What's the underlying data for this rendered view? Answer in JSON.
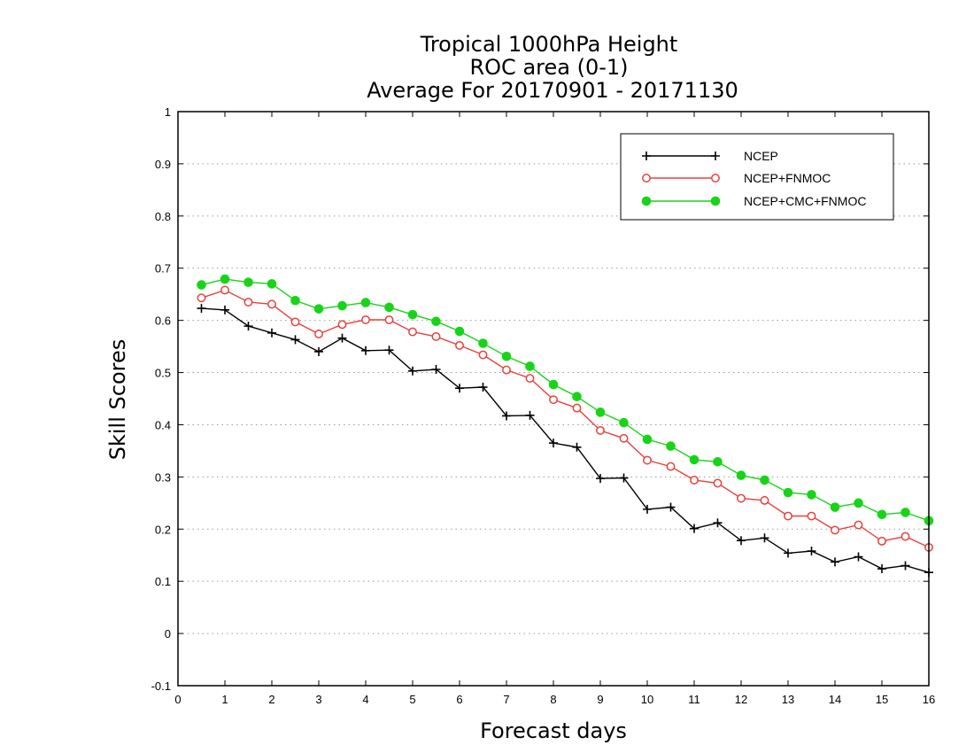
{
  "chart_data": {
    "type": "line",
    "title_lines": [
      "Tropical 1000hPa Height",
      "ROC area (0-1)",
      "Average For 20170901 - 20171130"
    ],
    "xlabel": "Forecast days",
    "ylabel": "Skill Scores",
    "xlim": [
      0,
      16
    ],
    "ylim": [
      -0.1,
      1
    ],
    "x_ticks": [
      "0",
      "1",
      "2",
      "3",
      "4",
      "5",
      "6",
      "7",
      "8",
      "9",
      "10",
      "11",
      "12",
      "13",
      "14",
      "15",
      "16"
    ],
    "y_ticks": [
      "-0.1",
      "0",
      "0.1",
      "0.2",
      "0.3",
      "0.4",
      "0.5",
      "0.6",
      "0.7",
      "0.8",
      "0.9",
      "1"
    ],
    "grid": "horizontal dotted",
    "legend_position": "top-right",
    "x": [
      0.5,
      1,
      1.5,
      2,
      2.5,
      3,
      3.5,
      4,
      4.5,
      5,
      5.5,
      6,
      6.5,
      7,
      7.5,
      8,
      8.5,
      9,
      9.5,
      10,
      10.5,
      11,
      11.5,
      12,
      12.5,
      13,
      13.5,
      14,
      14.5,
      15,
      15.5,
      16
    ],
    "series": [
      {
        "name": "NCEP",
        "color": "#000000",
        "marker": "plus",
        "values": [
          0.623,
          0.62,
          0.589,
          0.576,
          0.563,
          0.54,
          0.566,
          0.542,
          0.543,
          0.503,
          0.506,
          0.47,
          0.472,
          0.417,
          0.418,
          0.365,
          0.357,
          0.297,
          0.298,
          0.238,
          0.242,
          0.201,
          0.212,
          0.178,
          0.183,
          0.154,
          0.158,
          0.137,
          0.147,
          0.124,
          0.13,
          0.117
        ]
      },
      {
        "name": "NCEP+FNMOC",
        "color": "#e8413c",
        "marker": "open-circle",
        "values": [
          0.643,
          0.658,
          0.635,
          0.631,
          0.597,
          0.574,
          0.592,
          0.601,
          0.601,
          0.578,
          0.569,
          0.552,
          0.534,
          0.505,
          0.489,
          0.448,
          0.432,
          0.389,
          0.374,
          0.332,
          0.32,
          0.294,
          0.288,
          0.259,
          0.255,
          0.225,
          0.225,
          0.198,
          0.208,
          0.177,
          0.186,
          0.165
        ]
      },
      {
        "name": "NCEP+CMC+FNMOC",
        "color": "#18d418",
        "marker": "filled-circle",
        "values": [
          0.668,
          0.679,
          0.673,
          0.67,
          0.638,
          0.622,
          0.628,
          0.634,
          0.625,
          0.611,
          0.598,
          0.579,
          0.556,
          0.531,
          0.512,
          0.477,
          0.454,
          0.424,
          0.404,
          0.372,
          0.359,
          0.333,
          0.329,
          0.303,
          0.294,
          0.27,
          0.266,
          0.242,
          0.25,
          0.228,
          0.232,
          0.216
        ]
      }
    ]
  }
}
